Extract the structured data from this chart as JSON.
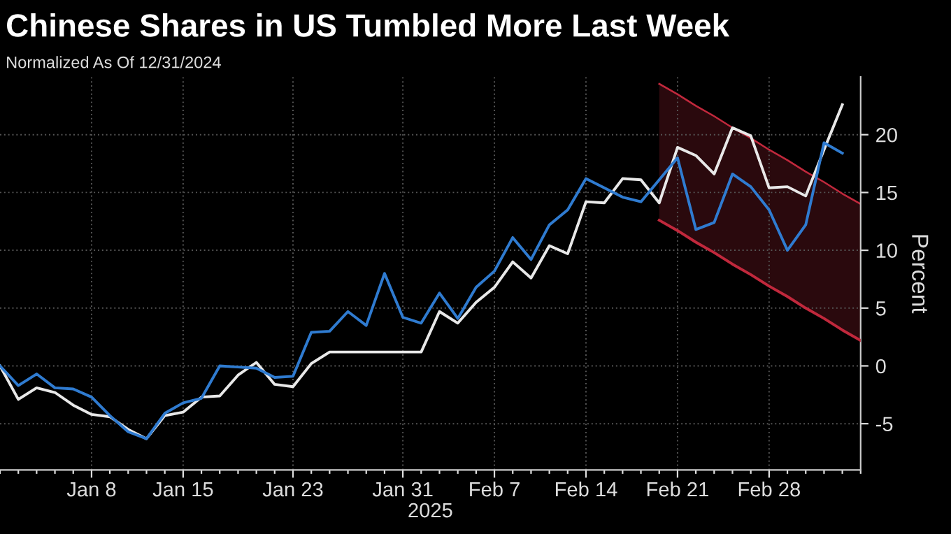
{
  "chart_data": {
    "type": "line",
    "title": "Chinese Shares in US Tumbled More Last Week",
    "subtitle": "Normalized As Of 12/31/2024",
    "xlabel": "2025",
    "ylabel": "Percent",
    "categories": [
      null,
      null,
      null,
      null,
      null,
      "Jan 8",
      null,
      null,
      null,
      null,
      "Jan 15",
      null,
      null,
      null,
      null,
      null,
      "Jan 23",
      null,
      null,
      null,
      null,
      null,
      "Jan 31",
      null,
      null,
      null,
      null,
      "Feb 7",
      null,
      null,
      null,
      null,
      "Feb 14",
      null,
      null,
      null,
      null,
      "Feb 21",
      null,
      null,
      null,
      null,
      "Feb 28",
      null,
      null,
      null,
      null,
      null
    ],
    "series": [
      {
        "color": "#e8e8e8",
        "values": [
          0,
          -2.9,
          -1.9,
          -2.3,
          -3.4,
          -4.2,
          -4.4,
          -5.5,
          -6.3,
          -4.3,
          -4.0,
          -2.7,
          -2.6,
          -0.8,
          0.3,
          -1.6,
          -1.8,
          0.2,
          1.2,
          1.2,
          1.2,
          1.2,
          1.2,
          1.2,
          4.7,
          3.7,
          5.5,
          6.8,
          9.0,
          7.6,
          10.4,
          9.7,
          14.2,
          14.1,
          16.2,
          16.1,
          14.1,
          18.9,
          18.2,
          16.6,
          20.6,
          19.9,
          15.4,
          15.5,
          14.7,
          18.7,
          22.6,
          null
        ]
      },
      {
        "color": "#2f7bd0",
        "values": [
          0,
          -1.7,
          -0.7,
          -1.9,
          -2.0,
          -2.7,
          -4.3,
          -5.7,
          -6.3,
          -4.1,
          -3.2,
          -2.8,
          0.0,
          -0.1,
          -0.2,
          -1.0,
          -0.9,
          2.9,
          3.0,
          4.7,
          3.5,
          8.0,
          4.2,
          3.7,
          6.3,
          4.1,
          6.8,
          8.2,
          11.1,
          9.2,
          12.2,
          13.5,
          16.2,
          15.4,
          14.6,
          14.2,
          16.1,
          18.0,
          11.8,
          12.4,
          16.6,
          15.5,
          13.5,
          10.0,
          12.2,
          19.3,
          18.4,
          null
        ]
      },
      {
        "color": "#c0283c",
        "lower": [
          null,
          null,
          null,
          null,
          null,
          null,
          null,
          null,
          null,
          null,
          null,
          null,
          null,
          null,
          null,
          null,
          null,
          null,
          null,
          null,
          null,
          null,
          null,
          null,
          null,
          null,
          null,
          null,
          null,
          null,
          null,
          null,
          null,
          null,
          null,
          null,
          12.6,
          11.7,
          10.7,
          9.8,
          8.8,
          7.9,
          6.9,
          6.0,
          5.0,
          4.1,
          3.1,
          2.2
        ],
        "upper": [
          null,
          null,
          null,
          null,
          null,
          null,
          null,
          null,
          null,
          null,
          null,
          null,
          null,
          null,
          null,
          null,
          null,
          null,
          null,
          null,
          null,
          null,
          null,
          null,
          null,
          null,
          null,
          null,
          null,
          null,
          null,
          null,
          null,
          null,
          null,
          null,
          24.4,
          23.5,
          22.5,
          21.6,
          20.6,
          19.7,
          18.7,
          17.8,
          16.8,
          15.9,
          14.9,
          14.0
        ],
        "values": [
          null,
          null,
          null,
          null,
          null,
          null,
          null,
          null,
          null,
          null,
          null,
          null,
          null,
          null,
          null,
          null,
          null,
          null,
          null,
          null,
          null,
          null,
          null,
          null,
          null,
          null,
          null,
          null,
          null,
          null,
          null,
          null,
          null,
          null,
          null,
          null,
          24.4,
          23.5,
          22.5,
          21.6,
          20.6,
          19.7,
          18.7,
          17.8,
          16.8,
          15.9,
          14.9,
          14.0
        ]
      },
      {
        "color": "#c0283c",
        "values": [
          null,
          null,
          null,
          null,
          null,
          null,
          null,
          null,
          null,
          null,
          null,
          null,
          null,
          null,
          null,
          null,
          null,
          null,
          null,
          null,
          null,
          null,
          null,
          null,
          null,
          null,
          null,
          null,
          null,
          null,
          null,
          null,
          null,
          null,
          null,
          null,
          12.6,
          11.7,
          10.7,
          9.8,
          8.8,
          7.9,
          6.9,
          6.0,
          5.0,
          4.1,
          3.1,
          2.2
        ]
      }
    ],
    "ylim": [
      -9,
      25
    ],
    "yticks": [
      -5,
      0,
      5,
      10,
      15,
      20
    ],
    "grid": true,
    "legend": false
  }
}
